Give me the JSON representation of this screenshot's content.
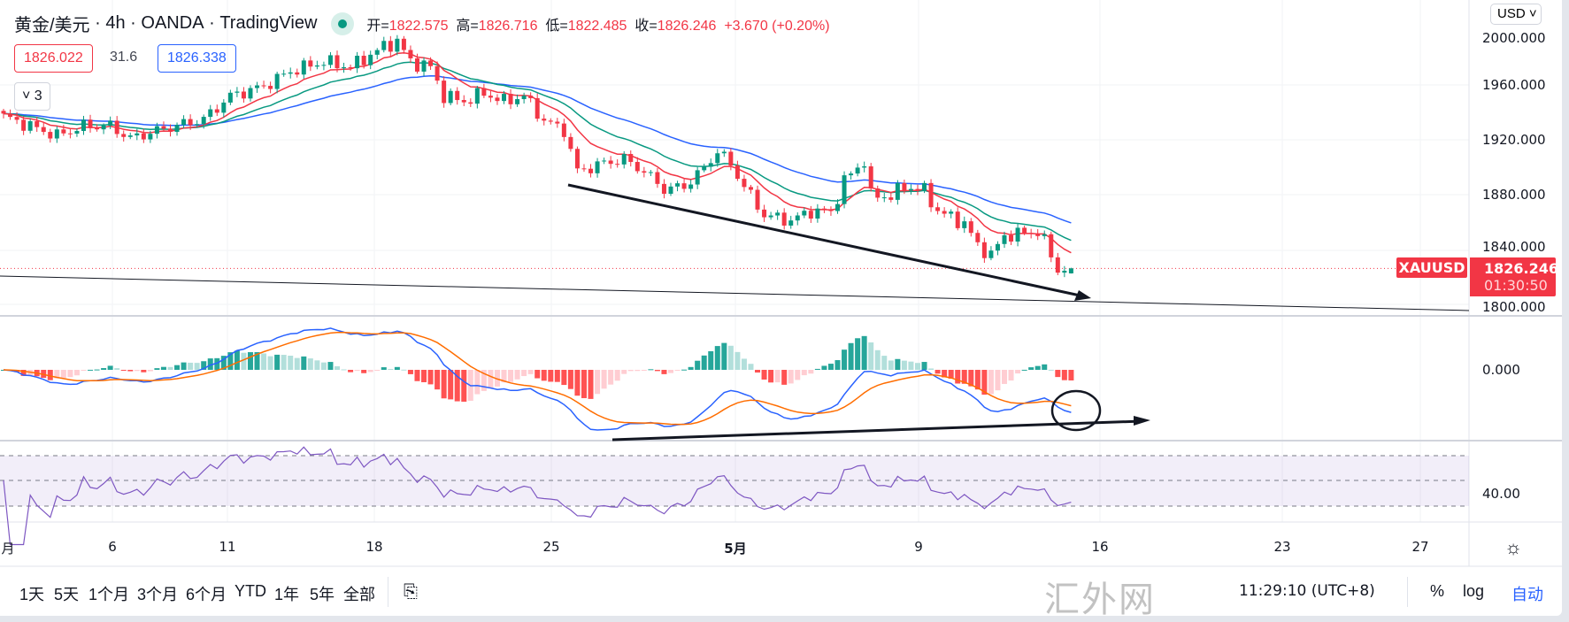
{
  "header": {
    "symbol": "黄金/美元",
    "interval": "4h",
    "broker": "OANDA",
    "platform": "TradingView",
    "sep": "·",
    "ohlc": [
      {
        "k": "开=",
        "v": "1822.575"
      },
      {
        "k": "高=",
        "v": "1826.716"
      },
      {
        "k": "低=",
        "v": "1822.485"
      },
      {
        "k": "收=",
        "v": "1826.246"
      }
    ],
    "change": "+3.670 (+0.20%)"
  },
  "indicators": {
    "ma_fast": "1826.022",
    "spread": "31.6",
    "ma_slow": "1826.338",
    "collapse_count": "3"
  },
  "price_axis": {
    "currency": "USD",
    "labels": [
      "2000.000",
      "1960.000",
      "1920.000",
      "1880.000",
      "1840.000",
      "1800.000"
    ],
    "macd_label": "0.000",
    "rsi_label": "40.00"
  },
  "last_price": {
    "symbol": "XAUUSD",
    "price": "1826.246",
    "countdown": "01:30:50"
  },
  "time_axis": [
    "月",
    "6",
    "11",
    "18",
    "25",
    "5月",
    "9",
    "16",
    "23",
    "27"
  ],
  "toolbar": {
    "ranges": [
      "1天",
      "5天",
      "1个月",
      "3个月",
      "6个月",
      "YTD",
      "1年",
      "5年",
      "全部"
    ],
    "clock": "11:29:10 (UTC+8)",
    "percent": "%",
    "log": "log",
    "auto": "自动"
  },
  "watermark": "汇外网",
  "colors": {
    "up": "#089981",
    "down": "#f23645",
    "ma_fast": "#f23645",
    "ma_mid": "#089981",
    "ma_slow": "#2962ff",
    "macd": "#2962ff",
    "signal": "#ff6d00",
    "rsi": "#7e57c2"
  },
  "chart_data": {
    "type": "candlestick",
    "symbol": "XAUUSD",
    "interval": "4h",
    "ylim": [
      1790,
      2010
    ],
    "close_keypoints": [
      [
        0,
        1937
      ],
      [
        4,
        1930
      ],
      [
        8,
        1923
      ],
      [
        12,
        1930
      ],
      [
        16,
        1930
      ],
      [
        19,
        1921
      ],
      [
        24,
        1928
      ],
      [
        30,
        1935
      ],
      [
        34,
        1952
      ],
      [
        39,
        1959
      ],
      [
        43,
        1970
      ],
      [
        48,
        1977
      ],
      [
        52,
        1973
      ],
      [
        57,
        1988
      ],
      [
        59,
        1992
      ],
      [
        61,
        1977
      ],
      [
        64,
        1973
      ],
      [
        66,
        1952
      ],
      [
        69,
        1948
      ],
      [
        72,
        1954
      ],
      [
        75,
        1948
      ],
      [
        78,
        1952
      ],
      [
        81,
        1934
      ],
      [
        84,
        1927
      ],
      [
        86,
        1897
      ],
      [
        90,
        1903
      ],
      [
        93,
        1906
      ],
      [
        96,
        1897
      ],
      [
        99,
        1884
      ],
      [
        102,
        1886
      ],
      [
        105,
        1899
      ],
      [
        107,
        1912
      ],
      [
        109,
        1902
      ],
      [
        111,
        1886
      ],
      [
        114,
        1865
      ],
      [
        118,
        1861
      ],
      [
        121,
        1868
      ],
      [
        124,
        1867
      ],
      [
        126,
        1890
      ],
      [
        129,
        1905
      ],
      [
        130,
        1879
      ],
      [
        133,
        1879
      ],
      [
        135,
        1886
      ],
      [
        138,
        1883
      ],
      [
        140,
        1868
      ],
      [
        144,
        1859
      ],
      [
        146,
        1843
      ],
      [
        148,
        1836
      ],
      [
        150,
        1850
      ],
      [
        153,
        1852
      ],
      [
        155,
        1853
      ],
      [
        156,
        1846
      ],
      [
        158,
        1825
      ],
      [
        160,
        1826.246
      ]
    ],
    "last_bar": {
      "open": 1822.575,
      "high": 1826.716,
      "low": 1822.485,
      "close": 1826.246
    },
    "indicators": [
      "EMA fast",
      "EMA mid",
      "EMA slow",
      "MACD(12,26,9)",
      "RSI(14)"
    ],
    "rsi_levels": [
      70,
      50,
      30
    ]
  }
}
